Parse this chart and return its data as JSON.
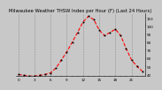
{
  "title": "Milwaukee Weather THSW Index per Hour (F) (Last 24 Hours)",
  "hours": [
    0,
    1,
    2,
    3,
    4,
    5,
    6,
    7,
    8,
    9,
    10,
    11,
    12,
    13,
    14,
    15,
    16,
    17,
    18,
    19,
    20,
    21,
    22,
    23
  ],
  "values": [
    40,
    39,
    38,
    38,
    39,
    40,
    42,
    48,
    58,
    68,
    80,
    92,
    105,
    112,
    108,
    95,
    88,
    92,
    96,
    88,
    72,
    58,
    50,
    44
  ],
  "line_color": "#ff0000",
  "marker_color": "#000000",
  "bg_color": "#c8c8c8",
  "plot_bg": "#c8c8c8",
  "grid_color": "#888888",
  "ylim": [
    38,
    116
  ],
  "yticks": [
    40,
    50,
    60,
    70,
    80,
    90,
    100,
    110
  ],
  "ytick_labels": [
    "40",
    "50",
    "60",
    "70",
    "80",
    "90",
    "100",
    "110"
  ],
  "xtick_step": 3,
  "title_fontsize": 3.8,
  "tick_fontsize": 3.0,
  "line_width": 0.8,
  "marker_size": 1.0
}
